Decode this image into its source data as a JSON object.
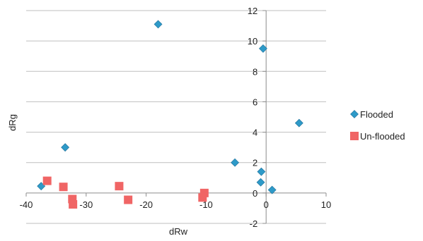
{
  "chart_data": {
    "type": "scatter",
    "title": "",
    "xlabel": "dRw",
    "ylabel": "dRg",
    "xlim": [
      -40,
      10
    ],
    "ylim": [
      -2,
      12
    ],
    "x_ticks": [
      -40,
      -30,
      -20,
      -10,
      0,
      10
    ],
    "y_ticks": [
      -2,
      0,
      2,
      4,
      6,
      8,
      10,
      12
    ],
    "grid": "horizontal",
    "legend_position": "right",
    "series": [
      {
        "name": "Flooded",
        "marker": "diamond",
        "color": "#2E9AC8",
        "points": [
          {
            "x": -18,
            "y": 11.1
          },
          {
            "x": -0.5,
            "y": 9.5
          },
          {
            "x": 5.5,
            "y": 4.6
          },
          {
            "x": -33.5,
            "y": 3.0
          },
          {
            "x": -5.2,
            "y": 2.0
          },
          {
            "x": -0.8,
            "y": 1.4
          },
          {
            "x": -0.9,
            "y": 0.7
          },
          {
            "x": 1.0,
            "y": 0.2
          },
          {
            "x": -37.5,
            "y": 0.45
          }
        ]
      },
      {
        "name": "Un-flooded",
        "marker": "square",
        "color": "#F06565",
        "points": [
          {
            "x": -36.5,
            "y": 0.8
          },
          {
            "x": -33.8,
            "y": 0.4
          },
          {
            "x": -24.5,
            "y": 0.45
          },
          {
            "x": -32.3,
            "y": -0.4
          },
          {
            "x": -32.2,
            "y": -0.75
          },
          {
            "x": -23.0,
            "y": -0.45
          },
          {
            "x": -10.3,
            "y": 0.0
          },
          {
            "x": -10.6,
            "y": -0.3
          }
        ]
      }
    ]
  }
}
